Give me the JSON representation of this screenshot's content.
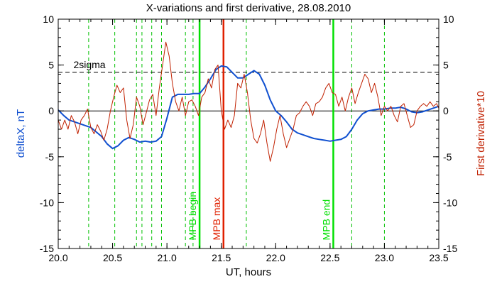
{
  "chart_data": {
    "type": "line",
    "title": "X-variations and first derivative, 28.08.2010",
    "xlabel": "UT, hours",
    "ylabel_left": "deltaX, nT",
    "ylabel_right": "First derivative*10",
    "xlim": [
      20.0,
      23.5
    ],
    "ylim": [
      -15,
      10
    ],
    "xticks": [
      "20.0",
      "20.5",
      "21.0",
      "21.5",
      "22.0",
      "22.5",
      "23.0",
      "23.5"
    ],
    "xtick_values": [
      20.0,
      20.5,
      21.0,
      21.5,
      22.0,
      22.5,
      23.0,
      23.5
    ],
    "yticks_left": [
      "10",
      "5",
      "0",
      "-5",
      "-10",
      "-15"
    ],
    "yticks_right": [
      "10",
      "5",
      "0",
      "-5",
      "-10",
      "-15"
    ],
    "ytick_values": [
      10,
      5,
      0,
      -5,
      -10,
      -15
    ],
    "zero_line": 0,
    "threshold": {
      "label": "2sigma",
      "value": 4.2
    },
    "vertical_dashed": [
      20.28,
      20.52,
      20.72,
      20.77,
      20.86,
      20.95,
      21.17,
      21.24,
      21.73,
      22.7,
      23.0
    ],
    "markers": [
      {
        "label": "MPB begin",
        "x": 21.3,
        "color": "#00e000"
      },
      {
        "label": "MPB max",
        "x": 21.52,
        "color": "#e02000"
      },
      {
        "label": "MPB end",
        "x": 22.53,
        "color": "#00e000"
      }
    ],
    "series": [
      {
        "name": "deltaX, nT",
        "color": "#1050d0",
        "x": [
          20.0,
          20.05,
          20.1,
          20.15,
          20.2,
          20.25,
          20.3,
          20.35,
          20.4,
          20.45,
          20.5,
          20.55,
          20.6,
          20.65,
          20.7,
          20.75,
          20.8,
          20.85,
          20.9,
          20.95,
          21.0,
          21.05,
          21.1,
          21.15,
          21.2,
          21.25,
          21.3,
          21.35,
          21.4,
          21.45,
          21.5,
          21.55,
          21.6,
          21.65,
          21.7,
          21.75,
          21.8,
          21.85,
          21.9,
          21.95,
          22.0,
          22.05,
          22.1,
          22.15,
          22.2,
          22.25,
          22.3,
          22.35,
          22.4,
          22.45,
          22.5,
          22.55,
          22.6,
          22.65,
          22.7,
          22.75,
          22.8,
          22.85,
          22.9,
          22.95,
          23.0,
          23.05,
          23.1,
          23.15,
          23.2,
          23.25,
          23.3,
          23.35,
          23.4,
          23.45,
          23.5
        ],
        "values": [
          0.1,
          -0.5,
          -1.0,
          -1.2,
          -1.4,
          -1.6,
          -1.8,
          -2.3,
          -2.8,
          -3.6,
          -4.1,
          -3.8,
          -3.2,
          -2.9,
          -3.1,
          -3.4,
          -3.3,
          -3.4,
          -3.3,
          -2.8,
          -0.8,
          1.5,
          1.8,
          1.8,
          1.8,
          1.9,
          1.9,
          2.6,
          3.5,
          4.5,
          4.9,
          4.8,
          4.2,
          3.6,
          3.6,
          4.0,
          4.4,
          4.0,
          2.8,
          1.2,
          0.0,
          -0.5,
          -1.2,
          -2.0,
          -2.4,
          -2.6,
          -2.8,
          -3.0,
          -3.1,
          -3.2,
          -3.3,
          -3.2,
          -3.1,
          -2.8,
          -2.0,
          -1.0,
          -0.3,
          0.0,
          0.1,
          0.2,
          0.2,
          0.3,
          0.3,
          0.4,
          0.2,
          -0.1,
          -0.2,
          -0.1,
          0.1,
          0.3,
          0.5
        ]
      },
      {
        "name": "First derivative*10",
        "color": "#c02000",
        "x": [
          20.0,
          20.03,
          20.06,
          20.09,
          20.12,
          20.15,
          20.18,
          20.21,
          20.24,
          20.27,
          20.3,
          20.33,
          20.36,
          20.39,
          20.42,
          20.45,
          20.48,
          20.51,
          20.54,
          20.57,
          20.6,
          20.63,
          20.66,
          20.69,
          20.72,
          20.75,
          20.78,
          20.81,
          20.84,
          20.87,
          20.9,
          20.93,
          20.96,
          20.99,
          21.02,
          21.05,
          21.08,
          21.11,
          21.14,
          21.17,
          21.2,
          21.23,
          21.26,
          21.29,
          21.32,
          21.35,
          21.38,
          21.41,
          21.44,
          21.47,
          21.5,
          21.53,
          21.56,
          21.59,
          21.62,
          21.65,
          21.68,
          21.71,
          21.74,
          21.77,
          21.8,
          21.83,
          21.86,
          21.89,
          21.92,
          21.95,
          21.98,
          22.01,
          22.04,
          22.07,
          22.1,
          22.13,
          22.16,
          22.19,
          22.22,
          22.25,
          22.28,
          22.31,
          22.34,
          22.37,
          22.4,
          22.43,
          22.46,
          22.49,
          22.52,
          22.55,
          22.58,
          22.61,
          22.64,
          22.67,
          22.7,
          22.73,
          22.76,
          22.79,
          22.82,
          22.85,
          22.88,
          22.91,
          22.94,
          22.97,
          23.0,
          23.03,
          23.06,
          23.09,
          23.12,
          23.15,
          23.18,
          23.21,
          23.24,
          23.27,
          23.3,
          23.33,
          23.36,
          23.39,
          23.42,
          23.45,
          23.48,
          23.5
        ],
        "values": [
          -1.0,
          -2.0,
          -1.0,
          -2.0,
          -0.5,
          -1.2,
          -2.5,
          -1.0,
          -0.5,
          0.2,
          -1.8,
          -2.5,
          -1.5,
          -2.2,
          -3.2,
          -2.0,
          0.0,
          1.5,
          2.8,
          2.0,
          2.5,
          -1.0,
          -3.0,
          -1.5,
          1.5,
          0.5,
          -1.5,
          -0.2,
          1.2,
          1.8,
          -0.5,
          2.5,
          5.0,
          7.5,
          6.0,
          3.0,
          1.0,
          0.0,
          1.5,
          -0.5,
          1.0,
          1.2,
          0.5,
          -0.5,
          1.5,
          2.0,
          3.5,
          2.5,
          4.5,
          5.0,
          0.0,
          -2.0,
          -1.0,
          -1.8,
          -0.5,
          3.0,
          2.5,
          4.0,
          2.0,
          -1.0,
          -3.0,
          -3.5,
          -2.5,
          -1.0,
          -3.5,
          -5.5,
          -4.0,
          -2.0,
          -0.5,
          -2.5,
          -4.0,
          -3.0,
          -2.0,
          -0.5,
          -0.2,
          0.5,
          1.0,
          0.5,
          -0.5,
          0.8,
          1.0,
          1.5,
          2.5,
          3.0,
          2.0,
          1.8,
          0.5,
          1.5,
          0.0,
          1.5,
          2.5,
          0.8,
          2.0,
          3.0,
          4.0,
          3.5,
          2.0,
          3.0,
          1.5,
          -0.5,
          0.5,
          0.0,
          0.5,
          -0.5,
          -1.2,
          0.5,
          0.8,
          -0.5,
          -1.8,
          -1.5,
          0.0,
          0.5,
          0.8,
          0.5,
          1.0,
          0.5,
          0.8,
          0.3
        ]
      }
    ],
    "colors": {
      "axis": "#000000",
      "deltaX_label": "#1050d0",
      "derivative_label": "#c02000",
      "dashed_lines": "#00c000",
      "green_marker": "#00e000",
      "red_marker": "#e02000"
    }
  }
}
